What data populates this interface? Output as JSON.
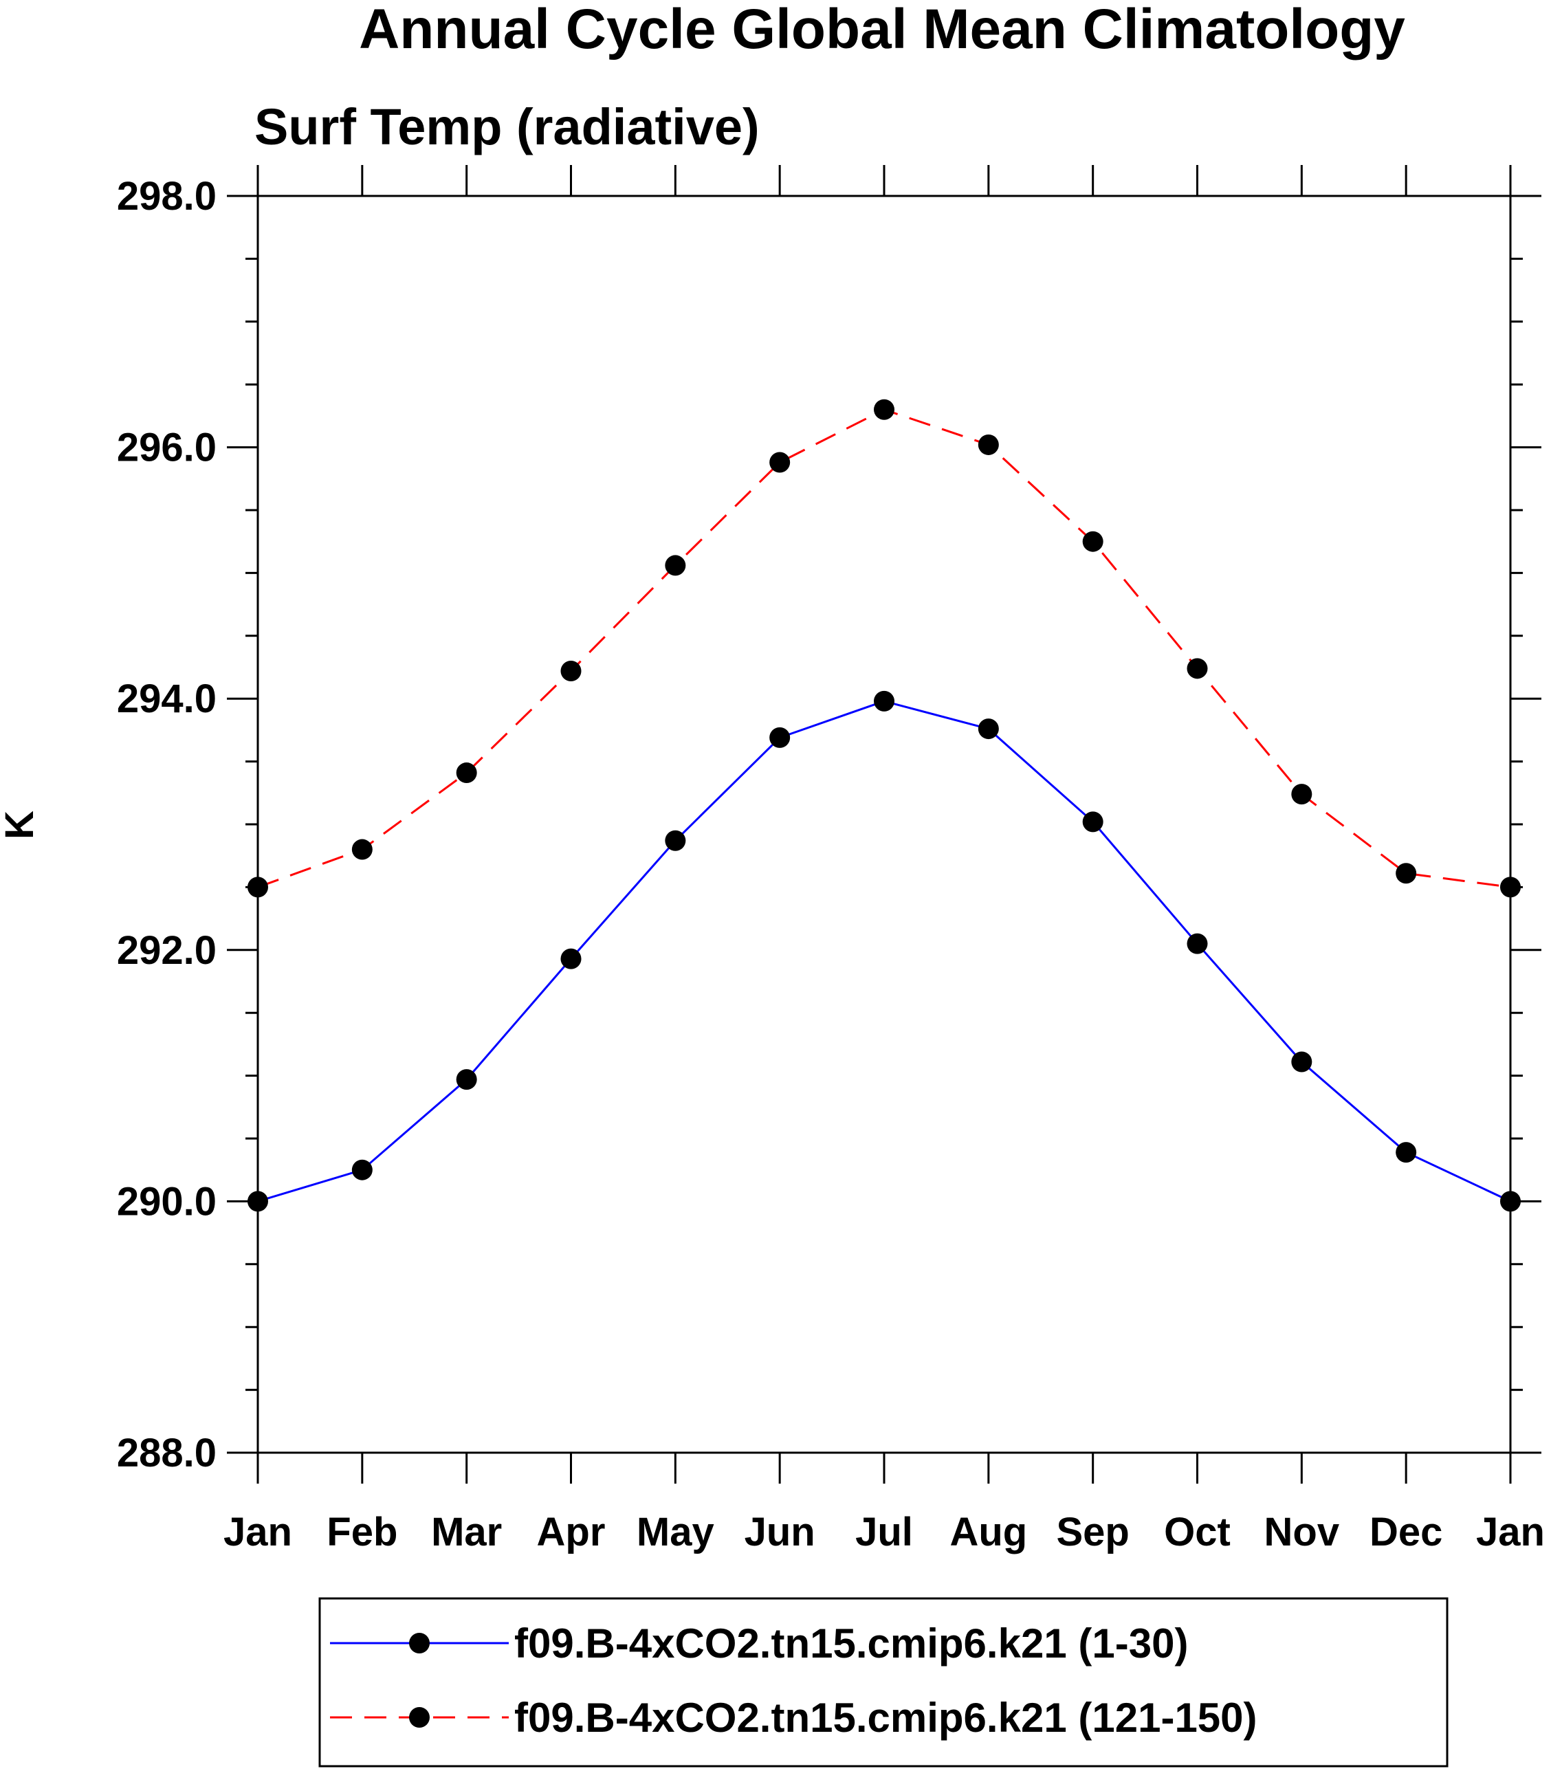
{
  "chart_data": {
    "type": "line",
    "title": "Annual Cycle Global Mean Climatology",
    "subtitle": "Surf Temp (radiative)",
    "xlabel": "",
    "ylabel": "K",
    "categories": [
      "Jan",
      "Feb",
      "Mar",
      "Apr",
      "May",
      "Jun",
      "Jul",
      "Aug",
      "Sep",
      "Oct",
      "Nov",
      "Dec",
      "Jan"
    ],
    "ylim": [
      288.0,
      298.0
    ],
    "yticks": [
      "288.0",
      "290.0",
      "292.0",
      "294.0",
      "296.0",
      "298.0"
    ],
    "ytick_values": [
      288,
      290,
      292,
      294,
      296,
      298
    ],
    "grid": false,
    "legend_position": "bottom",
    "series": [
      {
        "name": "f09.B-4xCO2.tn15.cmip6.k21 (1-30)",
        "color": "#0000ff",
        "line_style": "solid",
        "marker": "filled-circle",
        "marker_color": "#000000",
        "values": [
          290.0,
          290.25,
          290.97,
          291.93,
          292.87,
          293.69,
          293.98,
          293.76,
          293.02,
          292.05,
          291.11,
          290.39,
          290.0
        ]
      },
      {
        "name": "f09.B-4xCO2.tn15.cmip6.k21 (121-150)",
        "color": "#ff0000",
        "line_style": "dashed",
        "marker": "filled-circle",
        "marker_color": "#000000",
        "values": [
          292.5,
          292.8,
          293.41,
          294.22,
          295.06,
          295.88,
          296.3,
          296.02,
          295.25,
          294.24,
          293.24,
          292.61,
          292.5
        ]
      }
    ]
  }
}
